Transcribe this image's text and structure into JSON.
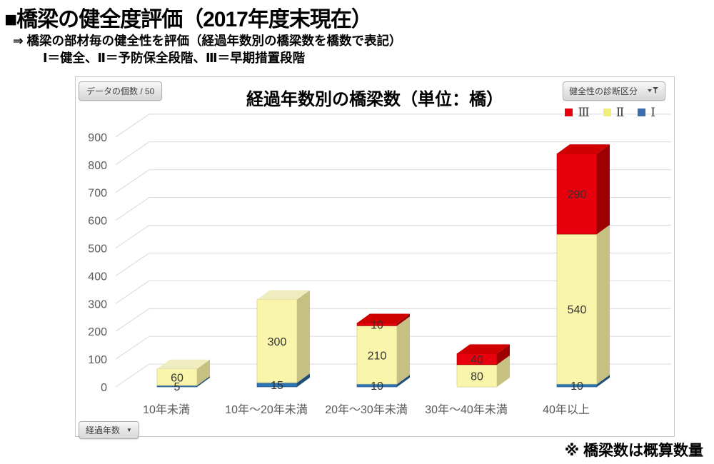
{
  "header": {
    "title": "■橋梁の健全度評価（2017年度末現在）",
    "subtitle": "⇒ 橋梁の部材毎の健全性を評価（経過年数別の橋梁数を橋数で表記）",
    "grade_note": "Ⅰ＝健全、Ⅱ＝予防保全段階、Ⅲ＝早期措置段階"
  },
  "chart": {
    "values_field_label": "データの個数 / 50",
    "title": "経過年数別の橋梁数（単位：橋）",
    "series_filter_label": "健全性の診断区分",
    "axis_field_label": "経過年数",
    "dropdown_caret": "▼"
  },
  "footnote": "※ 橋梁数は概算数量",
  "chart_data": {
    "type": "bar",
    "subtype": "3d-stacked-column",
    "title": "経過年数別の橋梁数（単位：橋）",
    "categories": [
      "10年未満",
      "10年～20年未満",
      "20年～30年未満",
      "30年～40年未満",
      "40年以上"
    ],
    "series": [
      {
        "name": "Ⅰ",
        "color": "#2e75b6",
        "side_color": "#1f4e79",
        "top_color": "#2e6da4",
        "values": [
          5,
          15,
          10,
          0,
          10
        ]
      },
      {
        "name": "Ⅱ",
        "color": "#f9f6ab",
        "side_color": "#c6c183",
        "top_color": "#efecc0",
        "values": [
          60,
          300,
          210,
          80,
          540
        ]
      },
      {
        "name": "Ⅲ",
        "color": "#e8000d",
        "side_color": "#9c0000",
        "top_color": "#cf0000",
        "values": [
          0,
          0,
          10,
          40,
          290
        ]
      }
    ],
    "stack_order_bottom_to_top": [
      "Ⅰ",
      "Ⅱ",
      "Ⅲ"
    ],
    "legend": [
      {
        "label": "Ⅲ",
        "color": "#e8000d"
      },
      {
        "label": "Ⅱ",
        "color": "#f2ee7d"
      },
      {
        "label": "Ⅰ",
        "color": "#3a6cb0"
      }
    ],
    "ylabel_ticks": [
      0,
      100,
      200,
      300,
      400,
      500,
      600,
      700,
      800,
      900
    ],
    "ylim": [
      0,
      900
    ],
    "grid": true,
    "legend_position": "top-right",
    "axis_text_color": "#595959",
    "grid_color": "#d9d9d9",
    "data_label_color": "#333333"
  }
}
